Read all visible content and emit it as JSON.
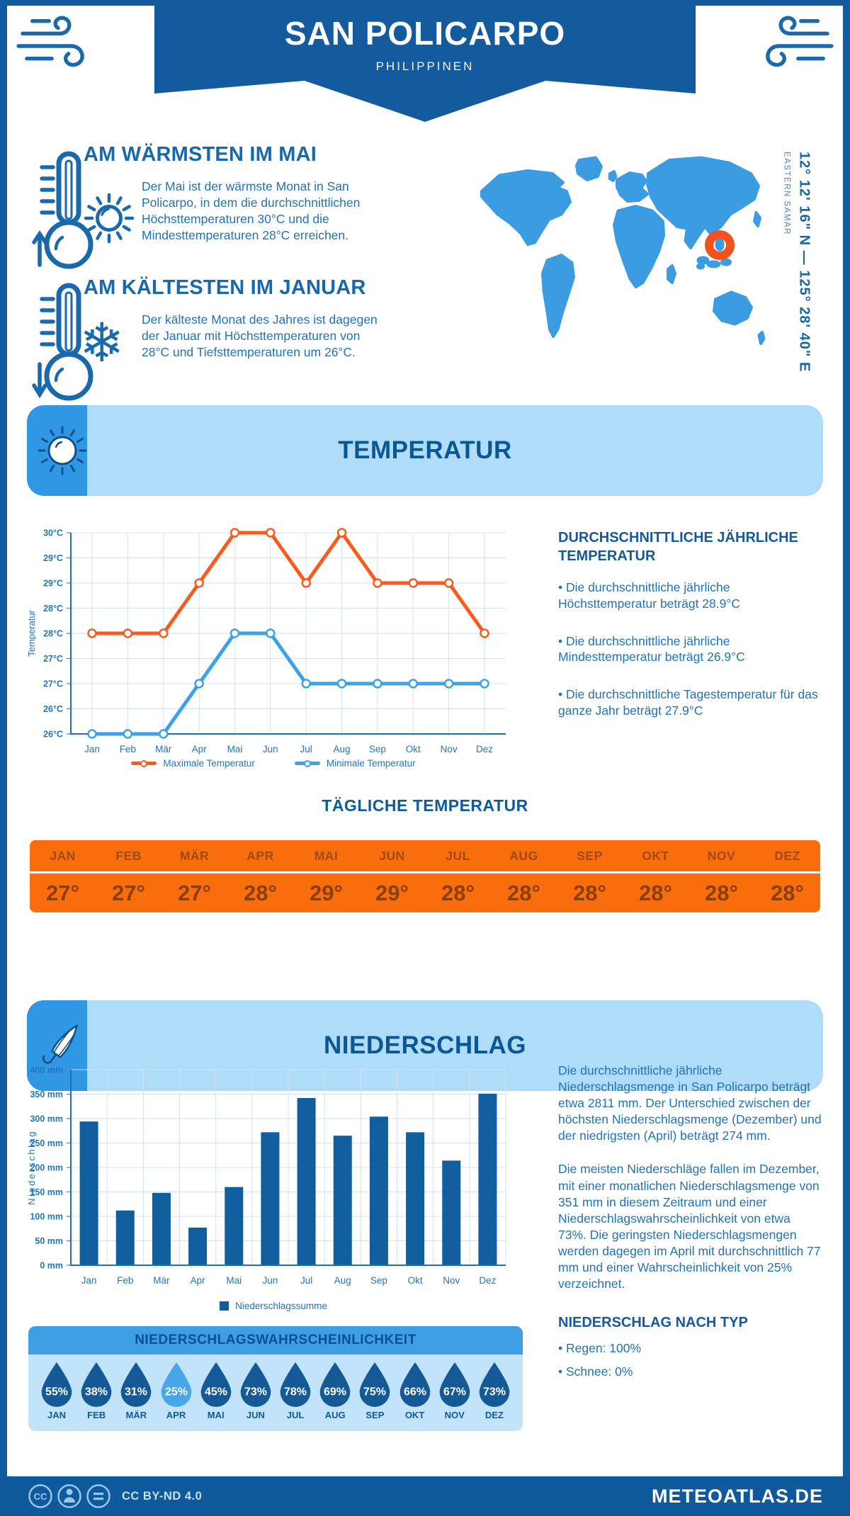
{
  "palette": {
    "primary_dark": "#135B9E",
    "primary_mid": "#3B9CE2",
    "panel_light": "#AFDCF8",
    "panel_lighter": "#C2E4FB",
    "heading_blue": "#0D5A9C",
    "text_blue": "#2173B8",
    "line_max": "#F95B1E",
    "line_min": "#3DA1E8",
    "bar_fill": "#115E9F",
    "table_orange": "#FA6D0C",
    "table_text": "#8A4005",
    "drop_dark": "#155A97",
    "drop_light": "#47A7E9",
    "marker_orange": "#F4511E"
  },
  "header": {
    "title": "SAN POLICARPO",
    "subtitle": "PHILIPPINEN"
  },
  "highlights": {
    "warmest": {
      "title": "AM WÄRMSTEN IM MAI",
      "text": "Der Mai ist der wärmste Monat in San Policarpo, in dem die durchschnittlichen Höchsttemperaturen 30°C und die Mindesttemperaturen 28°C erreichen."
    },
    "coldest": {
      "title": "AM KÄLTESTEN IM JANUAR",
      "text": "Der kälteste Monat des Jahres ist dagegen der Januar mit Höchsttemperaturen von 28°C und Tiefsttemperaturen um 26°C."
    }
  },
  "map": {
    "coordinates": "12° 12' 16\" N — 125° 28' 40\" E",
    "region": "EASTERN SAMAR"
  },
  "temperature": {
    "section_title": "TEMPERATUR",
    "right_heading": "DURCHSCHNITTLICHE JÄHRLICHE TEMPERATUR",
    "bullets": [
      "Die durchschnittliche jährliche Höchsttemperatur beträgt 28.9°C",
      "Die durchschnittliche jährliche Mindesttemperatur beträgt 26.9°C",
      "Die durchschnittliche Tagestemperatur für das ganze Jahr beträgt 27.9°C"
    ],
    "daily_title": "TÄGLICHE TEMPERATUR",
    "daily": {
      "months": [
        "JAN",
        "FEB",
        "MÄR",
        "APR",
        "MAI",
        "JUN",
        "JUL",
        "AUG",
        "SEP",
        "OKT",
        "NOV",
        "DEZ"
      ],
      "values": [
        "27°",
        "27°",
        "27°",
        "28°",
        "29°",
        "29°",
        "28°",
        "28°",
        "28°",
        "28°",
        "28°",
        "28°"
      ]
    }
  },
  "precipitation": {
    "section_title": "NIEDERSCHLAG",
    "paragraphs": [
      "Die durchschnittliche jährliche Niederschlagsmenge in San Policarpo beträgt etwa 2811 mm. Der Unterschied zwischen der höchsten Niederschlagsmenge (Dezember) und der niedrigsten (April) beträgt 274 mm.",
      "Die meisten Niederschläge fallen im Dezember, mit einer monatlichen Niederschlagsmenge von 351 mm in diesem Zeitraum und einer Niederschlagswahrscheinlichkeit von etwa 73%. Die geringsten Niederschlagsmengen werden dagegen im April mit durchschnittlich 77 mm und einer Wahrscheinlichkeit von 25% verzeichnet."
    ],
    "type_heading": "NIEDERSCHLAG NACH TYP",
    "type_bullets": [
      "Regen: 100%",
      "Schnee: 0%"
    ],
    "probability": {
      "title": "NIEDERSCHLAGSWAHRSCHEINLICHKEIT",
      "months": [
        "JAN",
        "FEB",
        "MÄR",
        "APR",
        "MAI",
        "JUN",
        "JUL",
        "AUG",
        "SEP",
        "OKT",
        "NOV",
        "DEZ"
      ],
      "values": [
        55,
        38,
        31,
        25,
        45,
        73,
        78,
        69,
        75,
        66,
        67,
        73
      ]
    }
  },
  "footer": {
    "license": "CC BY-ND 4.0",
    "site": "METEOATLAS.DE"
  },
  "chart_data": [
    {
      "type": "line",
      "categories": [
        "Jan",
        "Feb",
        "Mär",
        "Apr",
        "Mai",
        "Jun",
        "Jul",
        "Aug",
        "Sep",
        "Okt",
        "Nov",
        "Dez"
      ],
      "series": [
        {
          "name": "Maximale Temperatur",
          "color": "#F95B1E",
          "values": [
            28,
            28,
            28,
            29,
            30,
            30,
            29,
            30,
            29,
            29,
            29,
            28
          ]
        },
        {
          "name": "Minimale Temperatur",
          "color": "#3DA1E8",
          "values": [
            26,
            26,
            26,
            27,
            28,
            28,
            27,
            27,
            27,
            27,
            27,
            27
          ]
        }
      ],
      "ylabel": "Temperatur",
      "ylim": [
        26,
        30
      ],
      "ytick_step": 0.5,
      "ytick_labels": [
        "26°C",
        "26°C",
        "27°C",
        "27°C",
        "28°C",
        "28°C",
        "29°C",
        "29°C",
        "30°C"
      ],
      "grid": true,
      "legend_position": "bottom"
    },
    {
      "type": "bar",
      "categories": [
        "Jan",
        "Feb",
        "Mär",
        "Apr",
        "Mai",
        "Jun",
        "Jul",
        "Aug",
        "Sep",
        "Okt",
        "Nov",
        "Dez"
      ],
      "values": [
        294,
        112,
        148,
        77,
        160,
        272,
        342,
        265,
        304,
        272,
        214,
        351
      ],
      "series_name": "Niederschlagssumme",
      "color": "#115E9F",
      "ylabel": "Niederschlag",
      "ylim": [
        0,
        400
      ],
      "ytick_step": 50,
      "ytick_suffix": " mm",
      "grid": true,
      "legend_position": "bottom"
    }
  ]
}
